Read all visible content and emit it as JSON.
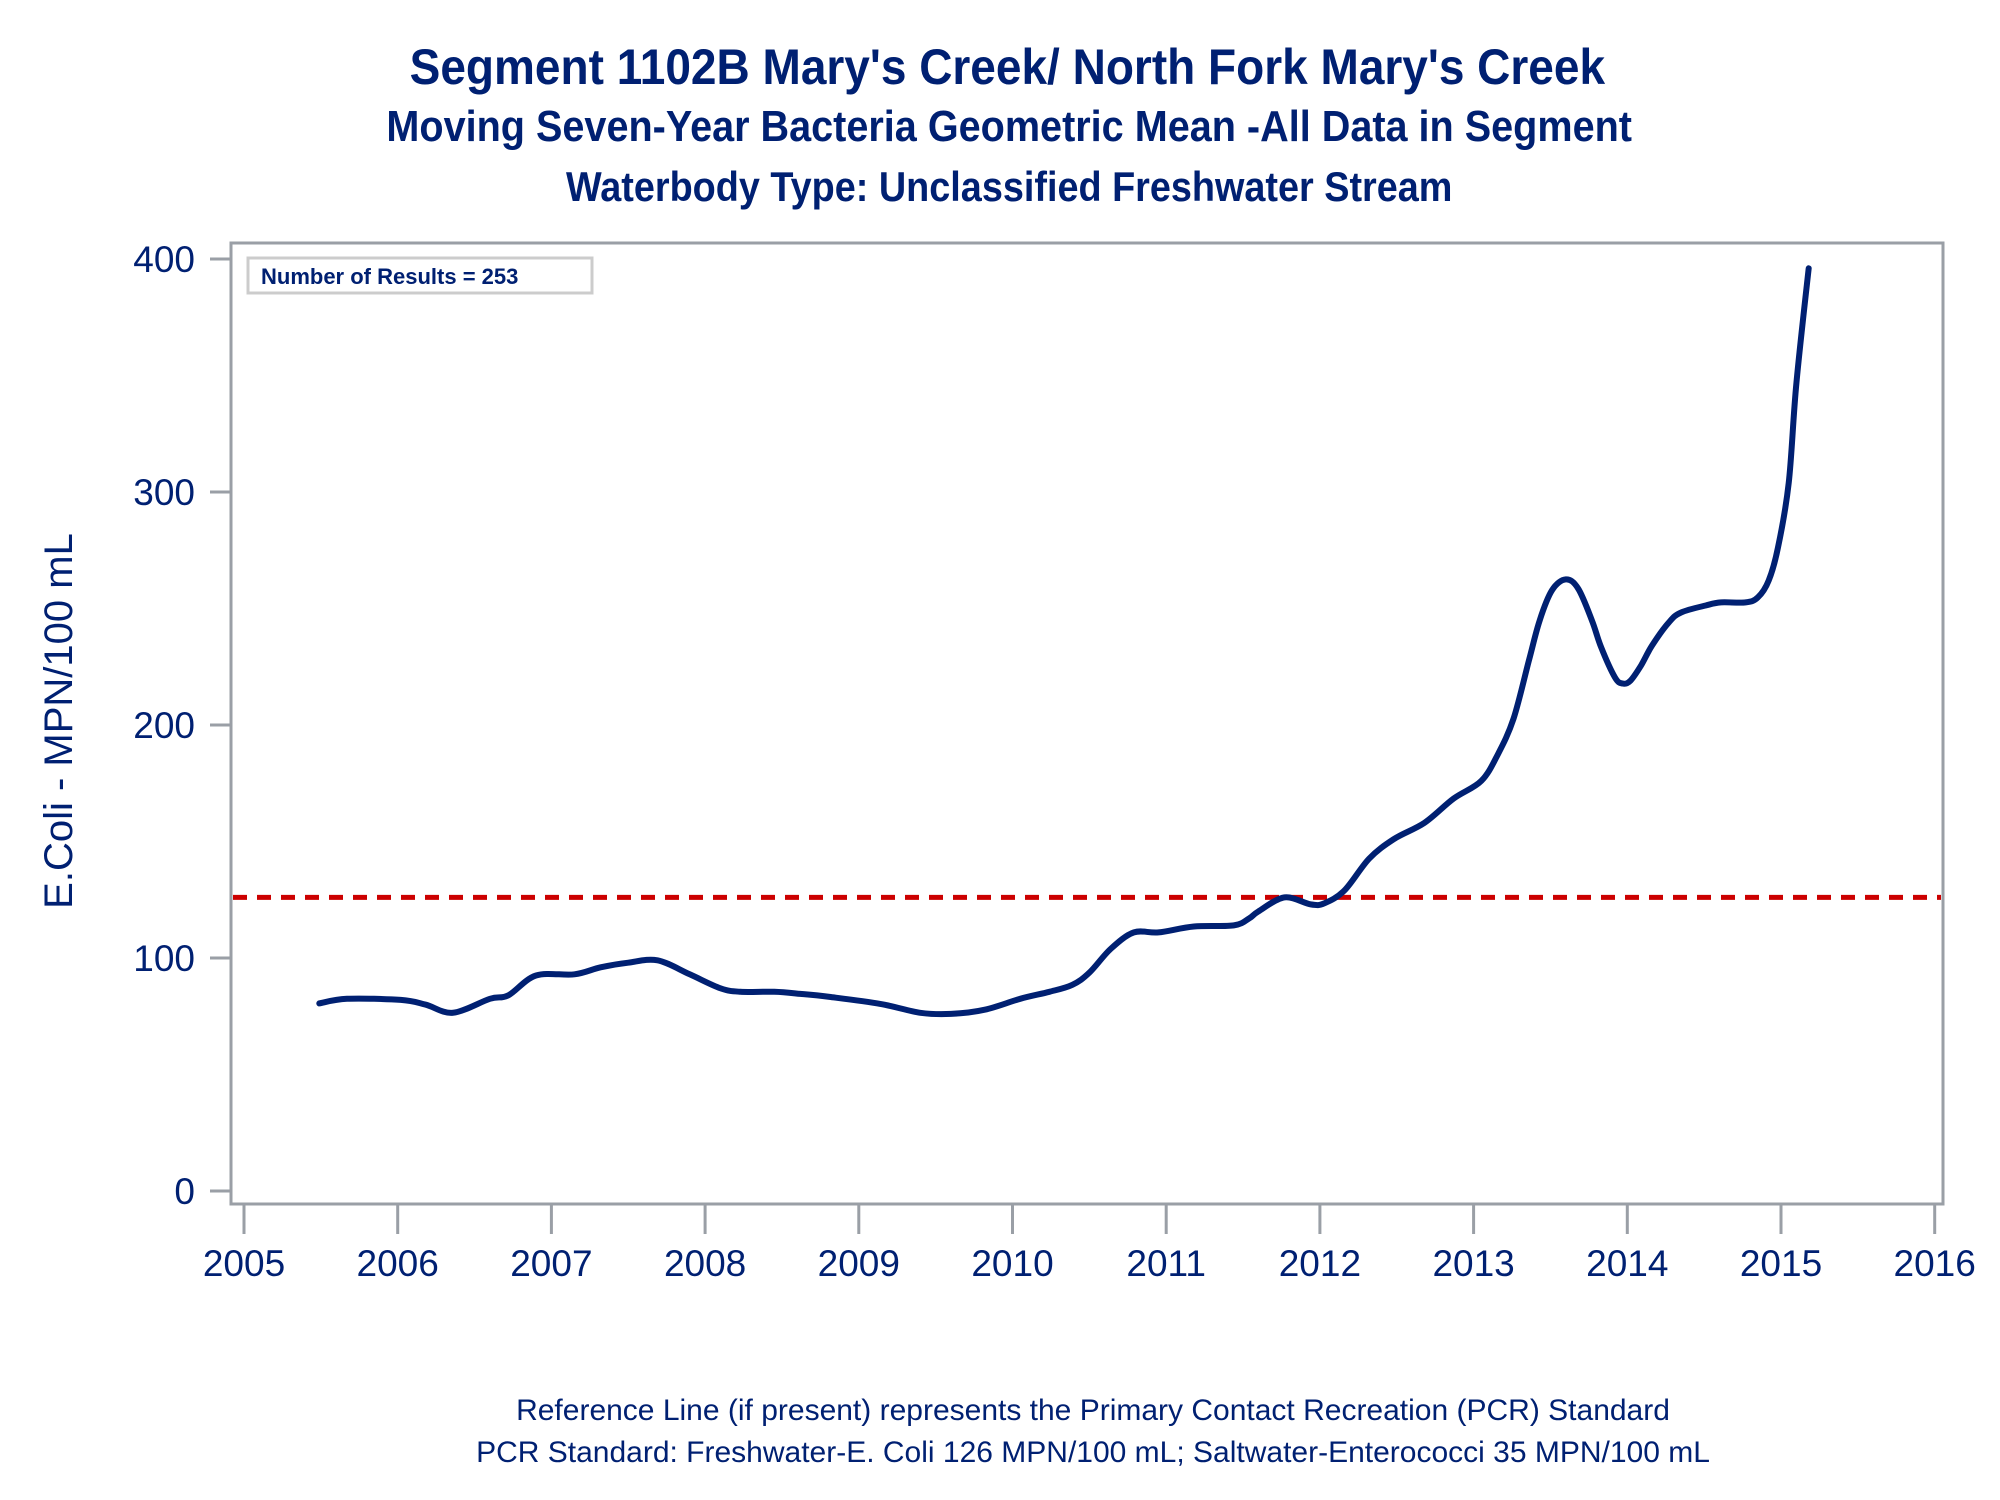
{
  "titles": {
    "line1": "Segment 1102B   Mary's Creek/ North Fork Mary's Creek",
    "line2": "Moving Seven-Year Bacteria Geometric Mean -All Data in Segment",
    "line3": "Waterbody Type: Unclassified Freshwater Stream"
  },
  "footer": {
    "line1": "Reference Line (if present) represents the Primary Contact Recreation (PCR) Standard",
    "line2": "PCR Standard: Freshwater-E. Coli 126 MPN/100 mL; Saltwater-Enterococci 35 MPN/100 mL"
  },
  "colors": {
    "text": "#002072",
    "series_line": "#002072",
    "reference_line": "#cc0000",
    "axis": "#9a9fa6",
    "legend_border": "#cccccc"
  },
  "chart_data": {
    "type": "line",
    "title": "Segment 1102B   Mary's Creek/ North Fork Mary's Creek",
    "subtitle": "Moving Seven-Year Bacteria Geometric Mean -All Data in Segment",
    "xlabel": "",
    "ylabel": "E.Coli - MPN/100 mL",
    "xlim": [
      2005,
      2016
    ],
    "ylim": [
      0,
      400
    ],
    "x_ticks": [
      2005,
      2006,
      2007,
      2008,
      2009,
      2010,
      2011,
      2012,
      2013,
      2014,
      2015,
      2016
    ],
    "x_tick_labels": [
      "2005",
      "2006",
      "2007",
      "2008",
      "2009",
      "2010",
      "2011",
      "2012",
      "2013",
      "2014",
      "2015",
      "2016"
    ],
    "y_ticks": [
      0,
      100,
      200,
      300,
      400
    ],
    "y_tick_labels": [
      "0",
      "100",
      "200",
      "300",
      "400"
    ],
    "grid": false,
    "annotation": "Number of Results = 253",
    "annotation_placement": "top-left",
    "reference_line": {
      "value": 126,
      "style": "dashed",
      "label": "PCR Standard"
    },
    "series": [
      {
        "name": "Moving Seven-Year Geometric Mean",
        "x": [
          2005.49,
          2005.67,
          2006.02,
          2006.18,
          2006.36,
          2006.6,
          2006.72,
          2006.9,
          2007.15,
          2007.32,
          2007.5,
          2007.69,
          2007.9,
          2008.1,
          2008.23,
          2008.45,
          2008.62,
          2008.81,
          2009.14,
          2009.4,
          2009.6,
          2009.82,
          2010.05,
          2010.24,
          2010.39,
          2010.5,
          2010.64,
          2010.79,
          2010.95,
          2011.18,
          2011.44,
          2011.54,
          2011.6,
          2011.77,
          2011.94,
          2012.03,
          2012.16,
          2012.32,
          2012.48,
          2012.68,
          2012.87,
          2013.05,
          2013.16,
          2013.26,
          2013.36,
          2013.43,
          2013.51,
          2013.6,
          2013.68,
          2013.77,
          2013.83,
          2013.92,
          2013.97,
          2014.02,
          2014.09,
          2014.16,
          2014.27,
          2014.35,
          2014.51,
          2014.61,
          2014.77,
          2014.85,
          2014.92,
          2014.98,
          2015.05,
          2015.1,
          2015.18
        ],
        "values": [
          80.5,
          82.5,
          82,
          80,
          76.5,
          82.5,
          84,
          92.5,
          93,
          96,
          98,
          99,
          93,
          87,
          85.5,
          85.5,
          84.6,
          83.3,
          80.3,
          76.5,
          76,
          77.8,
          82.5,
          85.5,
          88.5,
          93.7,
          104,
          111,
          111,
          113.5,
          114,
          117,
          120,
          126,
          123,
          123.5,
          129,
          142.6,
          151,
          158,
          168.4,
          176,
          187.7,
          202.8,
          227.7,
          244.9,
          257.8,
          262.5,
          258.6,
          244.9,
          233.3,
          220.4,
          217.8,
          219,
          225.6,
          234,
          244,
          248.3,
          251.3,
          252.6,
          252.6,
          254.8,
          262,
          276,
          303.8,
          346.7,
          396
        ]
      }
    ]
  }
}
